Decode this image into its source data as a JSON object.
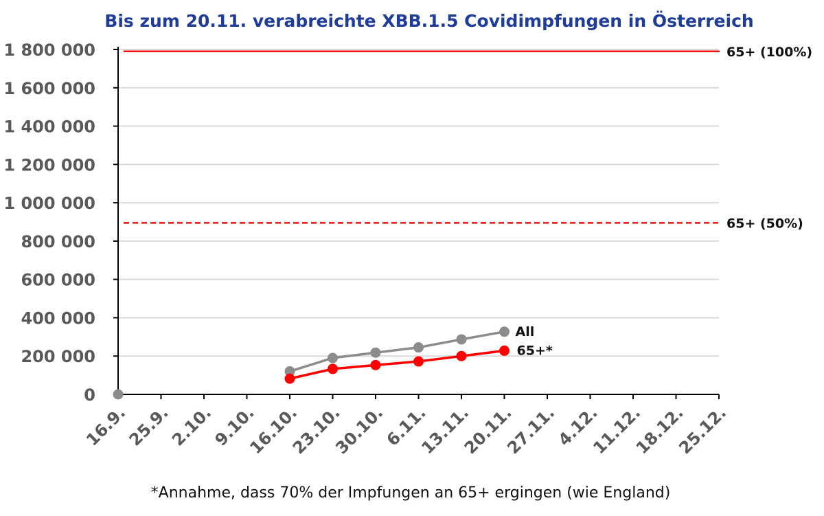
{
  "chart_data": {
    "type": "line",
    "title": "Bis zum 20.11. verabreichte XBB.1.5 Covidimpfungen in Österreich",
    "categories": [
      "16.9.",
      "25.9.",
      "2.10.",
      "9.10.",
      "16.10.",
      "23.10.",
      "30.10.",
      "6.11.",
      "13.11.",
      "20.11.",
      "27.11.",
      "4.12.",
      "11.12.",
      "18.12.",
      "25.12."
    ],
    "y_tick_labels": [
      "0",
      "200 000",
      "400 000",
      "600 000",
      "800 000",
      "1 000 000",
      "1 200 000",
      "1 400 000",
      "1 600 000",
      "1 800 000"
    ],
    "ylim": [
      0,
      1800000
    ],
    "grid": true,
    "series": [
      {
        "name": "All",
        "color": "#8c8c8c",
        "values": [
          0,
          null,
          null,
          null,
          120000,
          190000,
          218000,
          245000,
          287000,
          327000,
          null,
          null,
          null,
          null,
          null
        ]
      },
      {
        "name": "65+*",
        "color": "#ff0000",
        "values": [
          null,
          null,
          null,
          null,
          82000,
          133000,
          153000,
          172000,
          200000,
          228000,
          null,
          null,
          null,
          null,
          null
        ]
      }
    ],
    "reference_lines": [
      {
        "label": "65+ (100%)",
        "value": 1790000,
        "style": "solid",
        "color": "#ee1111"
      },
      {
        "label": "65+ (50%)",
        "value": 895000,
        "style": "dashed",
        "color": "#ee1111"
      }
    ],
    "footnote": "*Annahme, dass 70% der Impfungen an 65+ ergingen (wie England)"
  },
  "colors": {
    "title": "#1f3c99",
    "tick_text": "#595959",
    "axis": "#000000",
    "grid": "#d9d9d9"
  }
}
